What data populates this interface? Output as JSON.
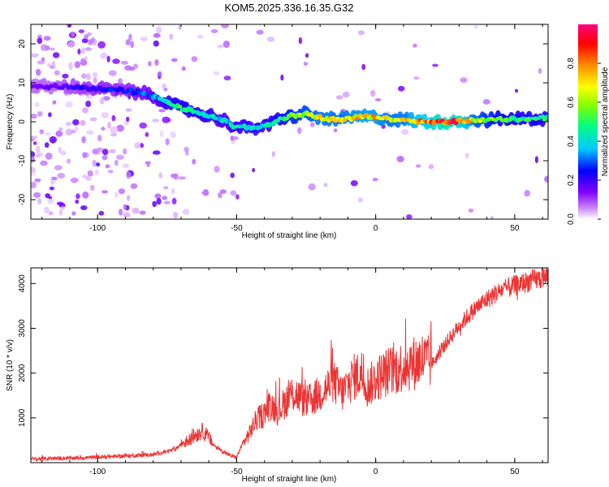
{
  "chart_data": [
    {
      "type": "heatmap",
      "title": "KOM5.2025.336.16.35.G32",
      "xlabel": "Height of straight line (km)",
      "ylabel": "Frequency (Hz)",
      "xlim": [
        -124,
        62
      ],
      "ylim": [
        -25,
        25
      ],
      "xticks": [
        -100,
        -50,
        0,
        50
      ],
      "yticks": [
        -20,
        -10,
        0,
        10,
        20
      ],
      "colorbar": {
        "label": "Normalized spectral amplitude",
        "range": [
          0.0,
          1.0
        ],
        "ticks": [
          "0.0",
          "0.2",
          "0.4",
          "0.6",
          "0.8"
        ],
        "colors": [
          "#ffffff",
          "#c880ff",
          "#8000ff",
          "#0000ff",
          "#00c8ff",
          "#00ff80",
          "#80ff00",
          "#ffff00",
          "#ff8000",
          "#ff0000",
          "#ff0080"
        ]
      },
      "ridge": {
        "name": "dominant frequency trace",
        "x": [
          -124,
          -110,
          -100,
          -90,
          -85,
          -80,
          -75,
          -70,
          -65,
          -60,
          -55,
          -50,
          -45,
          -40,
          -35,
          -30,
          -25,
          -20,
          -15,
          -10,
          -5,
          0,
          5,
          10,
          15,
          20,
          25,
          30,
          35,
          40,
          45,
          50,
          55,
          62
        ],
        "y": [
          9,
          9,
          8.5,
          8,
          7.5,
          6.5,
          5,
          3.5,
          2.5,
          1.5,
          0.5,
          -1.5,
          -1.5,
          -1.2,
          0.5,
          1.5,
          2.0,
          1.0,
          0.5,
          0.8,
          1.5,
          1.0,
          0.8,
          0.5,
          0.2,
          0,
          0,
          0.2,
          0.4,
          0.5,
          0.6,
          0.7,
          0.8,
          1.0
        ],
        "amplitude": [
          0.15,
          0.2,
          0.25,
          0.25,
          0.3,
          0.35,
          0.45,
          0.5,
          0.5,
          0.45,
          0.4,
          0.45,
          0.45,
          0.45,
          0.5,
          0.6,
          0.65,
          0.7,
          0.7,
          0.7,
          0.75,
          0.75,
          0.7,
          0.7,
          0.8,
          0.85,
          0.95,
          0.9,
          0.7,
          0.6,
          0.55,
          0.5,
          0.5,
          0.5
        ]
      }
    },
    {
      "type": "line",
      "xlabel": "Height of straight line (km)",
      "ylabel": "SNR (10 * v/v)",
      "xlim": [
        -124,
        62
      ],
      "ylim": [
        0,
        4350
      ],
      "xticks": [
        -100,
        -50,
        0,
        50
      ],
      "yticks": [
        1000,
        2000,
        3000,
        4000
      ],
      "series": [
        {
          "name": "SNR",
          "color": "#ee3333",
          "x": [
            -124,
            -110,
            -100,
            -90,
            -80,
            -75,
            -72,
            -70,
            -67,
            -65,
            -62,
            -60,
            -58,
            -55,
            -52,
            -50,
            -48,
            -45,
            -43,
            -40,
            -38,
            -35,
            -32,
            -30,
            -28,
            -25,
            -22,
            -20,
            -17,
            -15,
            -12,
            -10,
            -8,
            -5,
            -3,
            0,
            2,
            5,
            8,
            10,
            12,
            15,
            17,
            20,
            22,
            25,
            30,
            35,
            40,
            45,
            50,
            55,
            62
          ],
          "y": [
            80,
            100,
            120,
            150,
            180,
            250,
            300,
            420,
            500,
            620,
            700,
            550,
            380,
            250,
            150,
            120,
            400,
            700,
            950,
            1100,
            1300,
            1150,
            1400,
            1550,
            1500,
            1350,
            1450,
            1550,
            1700,
            1800,
            1550,
            1750,
            1900,
            2000,
            1700,
            1850,
            1950,
            2050,
            2100,
            2150,
            2200,
            2250,
            2300,
            2200,
            2350,
            2650,
            3050,
            3400,
            3650,
            3850,
            3950,
            4050,
            4150
          ]
        }
      ]
    }
  ]
}
